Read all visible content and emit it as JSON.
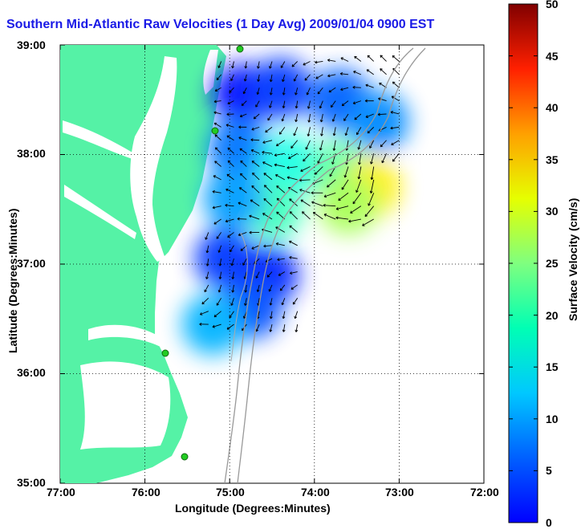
{
  "chart_data": {
    "type": "heatmap",
    "title": "Southern Mid-Atlantic Raw Velocities (1 Day Avg) 2009/01/04 0900 EST",
    "xlabel": "Longitude (Degrees:Minutes)",
    "ylabel": "Latitude (Degrees:Minutes)",
    "colorbar_label": "Surface Velocity (cm/s)",
    "xlim": [
      -77,
      -72
    ],
    "ylim": [
      35,
      39
    ],
    "x_ticks": [
      -77,
      -76,
      -75,
      -74,
      -73,
      -72
    ],
    "x_tick_labels": [
      "77:00",
      "76:00",
      "75:00",
      "74:00",
      "73:00",
      "72:00"
    ],
    "y_ticks": [
      35,
      36,
      37,
      38,
      39
    ],
    "y_tick_labels": [
      "35:00",
      "36:00",
      "37:00",
      "38:00",
      "39:00"
    ],
    "colorbar_range": [
      0,
      50
    ],
    "colorbar_ticks": [
      0,
      5,
      10,
      15,
      20,
      25,
      30,
      35,
      40,
      45,
      50
    ],
    "colorbar_tick_labels": [
      "0",
      "5",
      "10",
      "15",
      "20",
      "25",
      "30",
      "35",
      "40",
      "45",
      "50"
    ],
    "grid": true,
    "colormap": "jet",
    "land_color": "#55f2a6",
    "velocity_samples": [
      {
        "lon": -74.85,
        "lat": 38.55,
        "speed": 7
      },
      {
        "lon": -74.4,
        "lat": 38.6,
        "speed": 9
      },
      {
        "lon": -73.7,
        "lat": 38.5,
        "speed": 11
      },
      {
        "lon": -73.25,
        "lat": 38.3,
        "speed": 13
      },
      {
        "lon": -74.9,
        "lat": 38.05,
        "speed": 12
      },
      {
        "lon": -74.3,
        "lat": 37.9,
        "speed": 20
      },
      {
        "lon": -73.7,
        "lat": 37.85,
        "speed": 23
      },
      {
        "lon": -73.35,
        "lat": 37.7,
        "speed": 32
      },
      {
        "lon": -73.6,
        "lat": 37.55,
        "speed": 27
      },
      {
        "lon": -74.5,
        "lat": 37.5,
        "speed": 22
      },
      {
        "lon": -74.95,
        "lat": 37.6,
        "speed": 14
      },
      {
        "lon": -75.05,
        "lat": 37.05,
        "speed": 9
      },
      {
        "lon": -74.55,
        "lat": 36.9,
        "speed": 8
      },
      {
        "lon": -74.75,
        "lat": 36.6,
        "speed": 10
      },
      {
        "lon": -75.2,
        "lat": 36.45,
        "speed": 15
      }
    ]
  }
}
